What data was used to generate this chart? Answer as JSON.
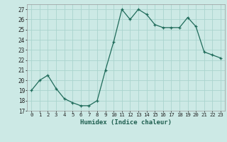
{
  "x": [
    0,
    1,
    2,
    3,
    4,
    5,
    6,
    7,
    8,
    9,
    10,
    11,
    12,
    13,
    14,
    15,
    16,
    17,
    18,
    19,
    20,
    21,
    22,
    23
  ],
  "y": [
    19.0,
    20.0,
    20.5,
    19.2,
    18.2,
    17.8,
    17.5,
    17.5,
    18.0,
    21.0,
    23.8,
    27.0,
    26.0,
    27.0,
    26.5,
    25.5,
    25.2,
    25.2,
    25.2,
    26.2,
    25.3,
    22.8,
    22.5,
    22.2
  ],
  "xlabel": "Humidex (Indice chaleur)",
  "ylim": [
    17,
    27.5
  ],
  "yticks": [
    17,
    18,
    19,
    20,
    21,
    22,
    23,
    24,
    25,
    26,
    27
  ],
  "bg_color": "#cce9e5",
  "line_color": "#1f6b5a",
  "grid_color": "#aad4ce",
  "tick_label_color": "#222222",
  "xlabel_color": "#1f5f50",
  "figsize": [
    3.2,
    2.0
  ],
  "dpi": 100
}
